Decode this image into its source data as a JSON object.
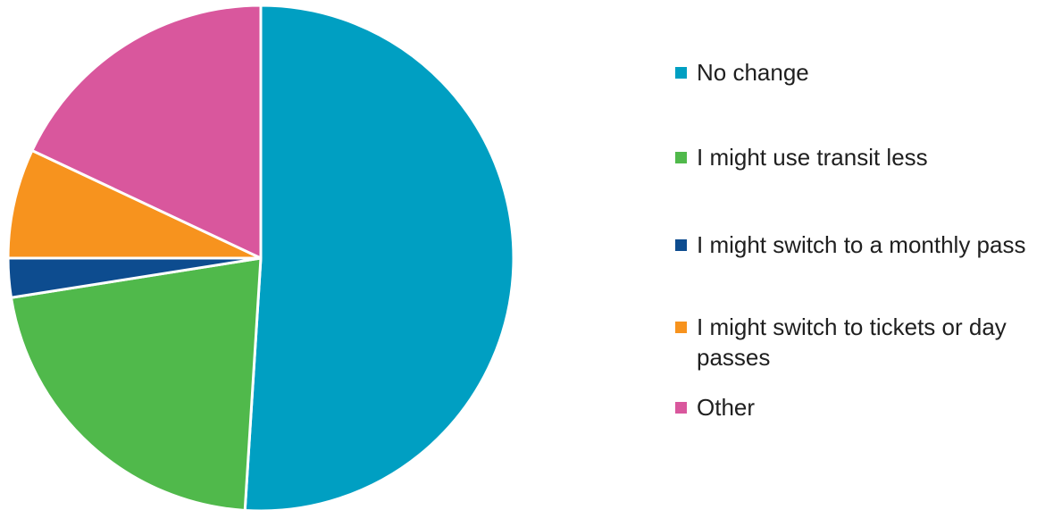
{
  "chart_data": {
    "type": "pie",
    "title": "",
    "slices": [
      {
        "label": "No change",
        "value": 51.0,
        "color": "#009FC2"
      },
      {
        "label": "I might use transit less",
        "value": 21.5,
        "color": "#50B94B"
      },
      {
        "label": "I might switch to a monthly pass",
        "value": 2.5,
        "color": "#0D4C8F"
      },
      {
        "label": "I might switch to tickets or day passes",
        "value": 7.0,
        "color": "#F7931E"
      },
      {
        "label": "Other",
        "value": 18.0,
        "color": "#D9579D"
      }
    ],
    "legend_position": "right",
    "start_angle": "12 o'clock",
    "direction": "clockwise"
  }
}
